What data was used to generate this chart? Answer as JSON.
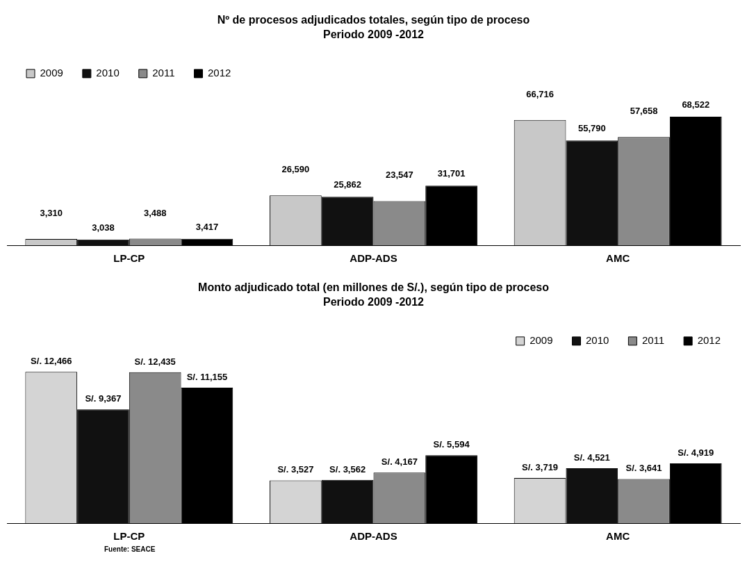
{
  "chart_data": [
    {
      "type": "bar",
      "title": "Nº de procesos adjudicados totales, según tipo de proceso",
      "subtitle": "Periodo 2009 -2012",
      "categories": [
        "LP-CP",
        "ADP-ADS",
        "AMC"
      ],
      "legend": "top left",
      "grid": false,
      "tick_labels": "x",
      "series": [
        {
          "name": "2009",
          "color": "#c8c8c8",
          "values": [
            3310,
            26590,
            66716
          ],
          "value_labels": [
            "3,310",
            "26,590",
            "66,716"
          ]
        },
        {
          "name": "2010",
          "color": "#111111",
          "values": [
            3038,
            25862,
            55790
          ],
          "value_labels": [
            "3,038",
            "25,862",
            "55,790"
          ]
        },
        {
          "name": "2011",
          "color": "#8a8a8a",
          "values": [
            3488,
            23547,
            57658
          ],
          "value_labels": [
            "3,488",
            "23,547",
            "57,658"
          ]
        },
        {
          "name": "2012",
          "color": "#000000",
          "values": [
            3417,
            31701,
            68522
          ],
          "value_labels": [
            "3,417",
            "31,701",
            "68,522"
          ]
        }
      ]
    },
    {
      "type": "bar",
      "title": "Monto adjudicado total (en millones de S/.), según tipo de proceso",
      "subtitle": "Periodo 2009 -2012",
      "categories": [
        "LP-CP",
        "ADP-ADS",
        "AMC"
      ],
      "legend": "top right",
      "grid": false,
      "tick_labels": "x",
      "annotations": [
        "Fuente: SEACE"
      ],
      "series": [
        {
          "name": "2009",
          "color": "#d4d4d4",
          "values": [
            12466,
            3527,
            3719
          ],
          "value_labels": [
            "S/. 12,466",
            "S/. 3,527",
            "S/. 3,719"
          ]
        },
        {
          "name": "2010",
          "color": "#111111",
          "values": [
            9367,
            3562,
            4521
          ],
          "value_labels": [
            "S/. 9,367",
            "S/. 3,562",
            "S/. 4,521"
          ]
        },
        {
          "name": "2011",
          "color": "#8a8a8a",
          "values": [
            12435,
            4167,
            3641
          ],
          "value_labels": [
            "S/. 12,435",
            "S/. 4,167",
            "S/. 3,641"
          ]
        },
        {
          "name": "2012",
          "color": "#000000",
          "values": [
            11155,
            5594,
            4919
          ],
          "value_labels": [
            "S/. 11,155",
            "S/. 5,594",
            "S/. 4,919"
          ]
        }
      ]
    }
  ]
}
